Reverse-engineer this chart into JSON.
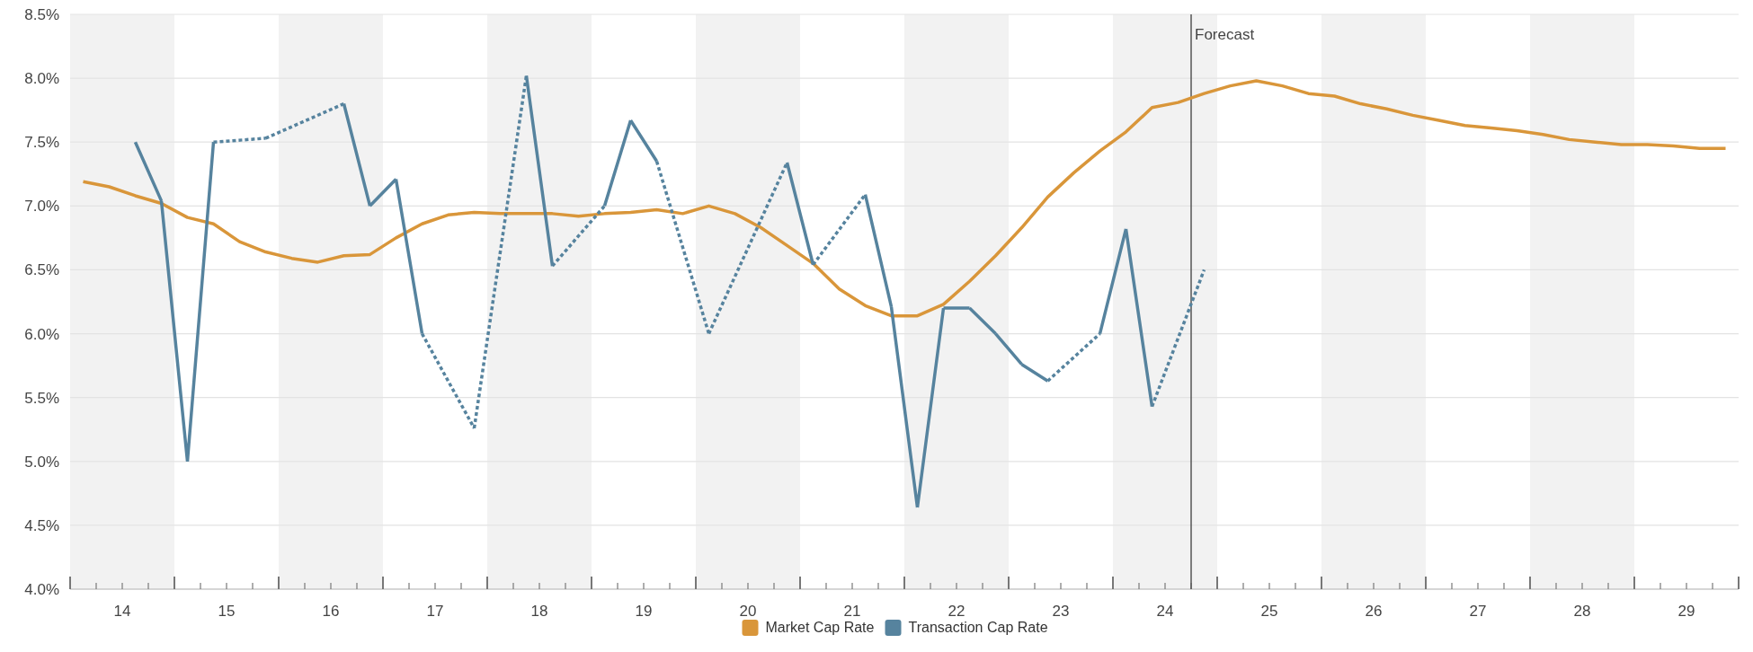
{
  "chart_data": {
    "type": "line",
    "xlim": [
      14,
      30
    ],
    "ylim": [
      4,
      8.5
    ],
    "yticks": [
      {
        "value": 4,
        "label": "4.0%"
      },
      {
        "value": 4.5,
        "label": "4.5%"
      },
      {
        "value": 5,
        "label": "5.0%"
      },
      {
        "value": 5.5,
        "label": "5.5%"
      },
      {
        "value": 6,
        "label": "6.0%"
      },
      {
        "value": 6.5,
        "label": "6.5%"
      },
      {
        "value": 7,
        "label": "7.0%"
      },
      {
        "value": 7.5,
        "label": "7.5%"
      },
      {
        "value": 8,
        "label": "8.0%"
      },
      {
        "value": 8.5,
        "label": "8.5%"
      }
    ],
    "xticks": [
      {
        "value": 14,
        "label": null
      },
      {
        "value": 14.25,
        "label": null
      },
      {
        "value": 14.5,
        "label": "14"
      },
      {
        "value": 14.75,
        "label": null
      },
      {
        "value": 15,
        "label": null
      },
      {
        "value": 15.25,
        "label": null
      },
      {
        "value": 15.5,
        "label": "15"
      },
      {
        "value": 15.75,
        "label": null
      },
      {
        "value": 16,
        "label": null
      },
      {
        "value": 16.25,
        "label": null
      },
      {
        "value": 16.5,
        "label": "16"
      },
      {
        "value": 16.75,
        "label": null
      },
      {
        "value": 17,
        "label": null
      },
      {
        "value": 17.25,
        "label": null
      },
      {
        "value": 17.5,
        "label": "17"
      },
      {
        "value": 17.75,
        "label": null
      },
      {
        "value": 18,
        "label": null
      },
      {
        "value": 18.25,
        "label": null
      },
      {
        "value": 18.5,
        "label": "18"
      },
      {
        "value": 18.75,
        "label": null
      },
      {
        "value": 19,
        "label": null
      },
      {
        "value": 19.25,
        "label": null
      },
      {
        "value": 19.5,
        "label": "19"
      },
      {
        "value": 19.75,
        "label": null
      },
      {
        "value": 20,
        "label": null
      },
      {
        "value": 20.25,
        "label": null
      },
      {
        "value": 20.5,
        "label": "20"
      },
      {
        "value": 20.75,
        "label": null
      },
      {
        "value": 21,
        "label": null
      },
      {
        "value": 21.25,
        "label": null
      },
      {
        "value": 21.5,
        "label": "21"
      },
      {
        "value": 21.75,
        "label": null
      },
      {
        "value": 22,
        "label": null
      },
      {
        "value": 22.25,
        "label": null
      },
      {
        "value": 22.5,
        "label": "22"
      },
      {
        "value": 22.75,
        "label": null
      },
      {
        "value": 23,
        "label": null
      },
      {
        "value": 23.25,
        "label": null
      },
      {
        "value": 23.5,
        "label": "23"
      },
      {
        "value": 23.75,
        "label": null
      },
      {
        "value": 24,
        "label": null
      },
      {
        "value": 24.25,
        "label": null
      },
      {
        "value": 24.5,
        "label": "24"
      },
      {
        "value": 24.75,
        "label": null
      },
      {
        "value": 25,
        "label": null
      },
      {
        "value": 25.25,
        "label": null
      },
      {
        "value": 25.5,
        "label": "25"
      },
      {
        "value": 25.75,
        "label": null
      },
      {
        "value": 26,
        "label": null
      },
      {
        "value": 26.25,
        "label": null
      },
      {
        "value": 26.5,
        "label": "26"
      },
      {
        "value": 26.75,
        "label": null
      },
      {
        "value": 27,
        "label": null
      },
      {
        "value": 27.25,
        "label": null
      },
      {
        "value": 27.5,
        "label": "27"
      },
      {
        "value": 27.75,
        "label": null
      },
      {
        "value": 28,
        "label": null
      },
      {
        "value": 28.25,
        "label": null
      },
      {
        "value": 28.5,
        "label": "28"
      },
      {
        "value": 28.75,
        "label": null
      },
      {
        "value": 29,
        "label": null
      },
      {
        "value": 29.25,
        "label": null
      },
      {
        "value": 29.5,
        "label": "29"
      },
      {
        "value": 29.75,
        "label": null
      },
      {
        "value": 30,
        "label": null
      }
    ],
    "grid": "y",
    "legend": "bottom",
    "marker": "none",
    "line_style": "solid",
    "bands": [
      {
        "axis": "x",
        "from": 14,
        "to": 15,
        "color": "#f2f2f2"
      },
      {
        "axis": "x",
        "from": 16,
        "to": 17,
        "color": "#f2f2f2"
      },
      {
        "axis": "x",
        "from": 18,
        "to": 19,
        "color": "#f2f2f2"
      },
      {
        "axis": "x",
        "from": 20,
        "to": 21,
        "color": "#f2f2f2"
      },
      {
        "axis": "x",
        "from": 22,
        "to": 23,
        "color": "#f2f2f2"
      },
      {
        "axis": "x",
        "from": 24,
        "to": 25,
        "color": "#f2f2f2"
      },
      {
        "axis": "x",
        "from": 26,
        "to": 27,
        "color": "#f2f2f2"
      },
      {
        "axis": "x",
        "from": 28,
        "to": 29,
        "color": "#f2f2f2"
      }
    ],
    "ref_lines": [
      {
        "axis": "x",
        "value": 24.75,
        "label": "Forecast",
        "color": "#555555"
      }
    ],
    "series": [
      {
        "name": "Market Cap Rate",
        "color": "#d9963a",
        "x": [
          14.125,
          14.375,
          14.625,
          14.875,
          15.125,
          15.375,
          15.625,
          15.875,
          16.125,
          16.375,
          16.625,
          16.875,
          17.125,
          17.375,
          17.625,
          17.875,
          18.125,
          18.375,
          18.625,
          18.875,
          19.125,
          19.375,
          19.625,
          19.875,
          20.125,
          20.375,
          20.625,
          20.875,
          21.125,
          21.375,
          21.625,
          21.875,
          22.125,
          22.375,
          22.625,
          22.875,
          23.125,
          23.375,
          23.625,
          23.875,
          24.125,
          24.375,
          24.625,
          24.875,
          25.125,
          25.375,
          25.625,
          25.875,
          26.125,
          26.375,
          26.625,
          26.875,
          27.125,
          27.375,
          27.625,
          27.875,
          28.125,
          28.375,
          28.625,
          28.875,
          29.125,
          29.375,
          29.625,
          29.875
        ],
        "values": [
          7.19,
          7.15,
          7.08,
          7.02,
          6.91,
          6.86,
          6.72,
          6.64,
          6.59,
          6.56,
          6.61,
          6.62,
          6.75,
          6.86,
          6.93,
          6.95,
          6.94,
          6.94,
          6.94,
          6.92,
          6.94,
          6.95,
          6.97,
          6.94,
          7.0,
          6.94,
          6.83,
          6.69,
          6.55,
          6.35,
          6.22,
          6.14,
          6.14,
          6.23,
          6.41,
          6.61,
          6.83,
          7.07,
          7.26,
          7.43,
          7.58,
          7.77,
          7.81,
          7.88,
          7.94,
          7.98,
          7.94,
          7.88,
          7.86,
          7.8,
          7.76,
          7.71,
          7.67,
          7.63,
          7.61,
          7.59,
          7.56,
          7.52,
          7.5,
          7.48,
          7.48,
          7.47,
          7.45,
          7.45
        ]
      },
      {
        "name": "Transaction Cap Rate",
        "color": "#56839e",
        "x": [
          14.625,
          14.875,
          15.125,
          15.375,
          15.875,
          16.625,
          16.875,
          17.125,
          17.375,
          17.875,
          18.375,
          18.625,
          19.125,
          19.375,
          19.625,
          20.125,
          20.875,
          21.125,
          21.625,
          21.875,
          22.125,
          22.375,
          22.625,
          22.875,
          23.125,
          23.375,
          23.875,
          24.125,
          24.375,
          24.875
        ],
        "values": [
          7.5,
          7.04,
          5.0,
          7.5,
          7.53,
          7.8,
          7.0,
          7.21,
          6.0,
          5.26,
          8.02,
          6.53,
          7.0,
          7.67,
          7.35,
          6.0,
          7.34,
          6.54,
          7.09,
          6.21,
          4.64,
          6.2,
          6.2,
          6.0,
          5.76,
          5.63,
          6.0,
          6.82,
          5.43,
          6.5
        ]
      }
    ]
  }
}
